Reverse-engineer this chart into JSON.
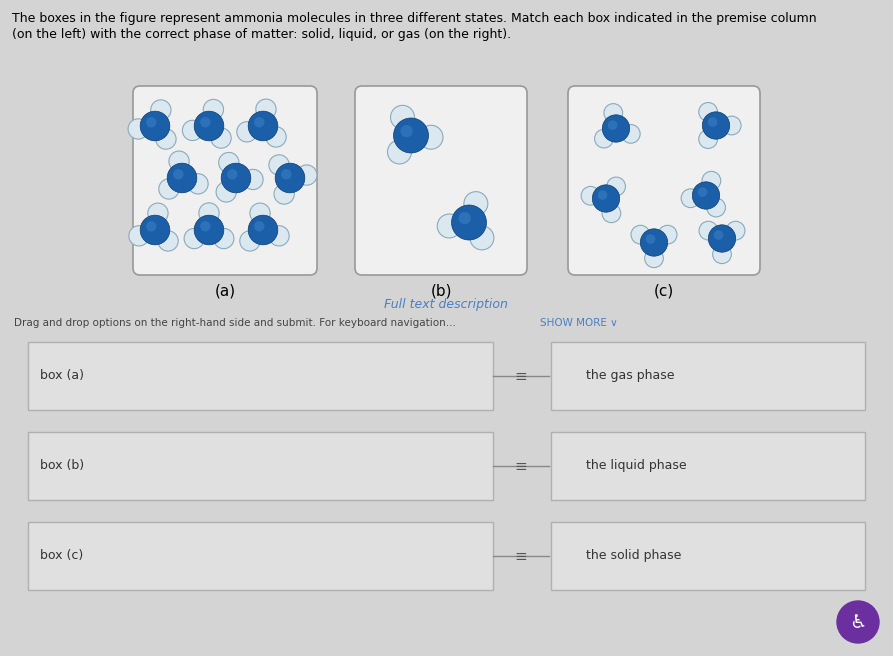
{
  "bg_color": "#d4d4d4",
  "title_line1": "The boxes in the figure represent ammonia molecules in three different states. Match each box indicated in the premise column",
  "title_line2": "(on the left) with the correct phase of matter: solid, liquid, or gas (on the right).",
  "title_fontsize": 9.0,
  "box_labels": [
    "(a)",
    "(b)",
    "(c)"
  ],
  "full_text_desc": "Full text description",
  "full_text_color": "#4a7fc1",
  "drag_text": "Drag and drop options on the right-hand side and submit. For keyboard navigation...",
  "show_more_text": "SHOW MORE ∨",
  "drag_text_fontsize": 7.5,
  "premise_labels": [
    "box (a)",
    "box (b)",
    "box (c)"
  ],
  "answer_labels": [
    "the gas phase",
    "the liquid phase",
    "the solid phase"
  ],
  "box_bg": "#e8e8e8",
  "molecule_blue": "#1a5fa8",
  "molecule_white": "#dce8f0",
  "molecule_white_stroke": "#8aaabb"
}
